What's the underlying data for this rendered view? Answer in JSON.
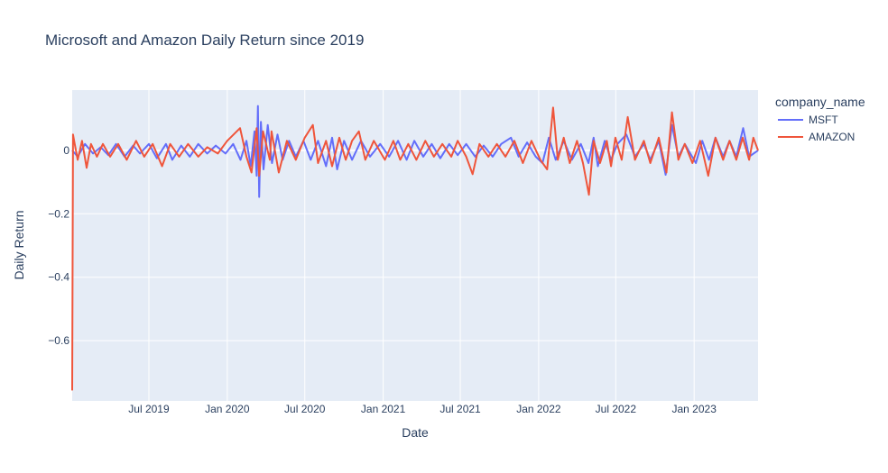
{
  "chart_data": {
    "type": "line",
    "title": "Microsoft and Amazon Daily Return since 2019",
    "xlabel": "Date",
    "ylabel": "Daily Return",
    "x_range": [
      "2019-01-02",
      "2023-05-31"
    ],
    "ylim": [
      -0.79,
      0.19
    ],
    "y_ticks": [
      0,
      -0.2,
      -0.4,
      -0.6
    ],
    "y_tick_labels": [
      "0",
      "−0.2",
      "−0.4",
      "−0.6"
    ],
    "x_ticks": [
      "2019-07-01",
      "2020-01-01",
      "2020-07-01",
      "2021-01-01",
      "2021-07-01",
      "2022-01-01",
      "2022-07-01",
      "2023-01-01"
    ],
    "x_tick_labels": [
      "Jul 2019",
      "Jan 2020",
      "Jul 2020",
      "Jan 2021",
      "Jul 2021",
      "Jan 2022",
      "Jul 2022",
      "Jan 2023"
    ],
    "grid": true,
    "legend": {
      "title": "company_name",
      "placement": "right"
    },
    "series": [
      {
        "name": "MSFT",
        "color": "#636efa",
        "points": [
          [
            "2019-01-02",
            0.0
          ],
          [
            "2019-01-15",
            -0.02
          ],
          [
            "2019-02-01",
            0.02
          ],
          [
            "2019-02-20",
            -0.01
          ],
          [
            "2019-03-10",
            0.01
          ],
          [
            "2019-03-28",
            -0.015
          ],
          [
            "2019-04-15",
            0.02
          ],
          [
            "2019-05-05",
            -0.02
          ],
          [
            "2019-05-25",
            0.015
          ],
          [
            "2019-06-10",
            -0.01
          ],
          [
            "2019-07-01",
            0.02
          ],
          [
            "2019-07-20",
            -0.025
          ],
          [
            "2019-08-10",
            0.02
          ],
          [
            "2019-08-25",
            -0.03
          ],
          [
            "2019-09-15",
            0.015
          ],
          [
            "2019-10-05",
            -0.02
          ],
          [
            "2019-10-25",
            0.02
          ],
          [
            "2019-11-15",
            -0.01
          ],
          [
            "2019-12-05",
            0.015
          ],
          [
            "2019-12-28",
            -0.01
          ],
          [
            "2020-01-15",
            0.02
          ],
          [
            "2020-02-01",
            -0.03
          ],
          [
            "2020-02-15",
            0.03
          ],
          [
            "2020-02-25",
            -0.05
          ],
          [
            "2020-03-05",
            0.06
          ],
          [
            "2020-03-10",
            -0.08
          ],
          [
            "2020-03-13",
            0.14
          ],
          [
            "2020-03-16",
            -0.147
          ],
          [
            "2020-03-20",
            0.09
          ],
          [
            "2020-03-26",
            -0.06
          ],
          [
            "2020-04-05",
            0.08
          ],
          [
            "2020-04-15",
            -0.04
          ],
          [
            "2020-04-28",
            0.05
          ],
          [
            "2020-05-10",
            -0.03
          ],
          [
            "2020-05-25",
            0.03
          ],
          [
            "2020-06-10",
            -0.02
          ],
          [
            "2020-06-28",
            0.03
          ],
          [
            "2020-07-15",
            -0.03
          ],
          [
            "2020-08-01",
            0.03
          ],
          [
            "2020-08-20",
            -0.05
          ],
          [
            "2020-09-03",
            0.04
          ],
          [
            "2020-09-15",
            -0.06
          ],
          [
            "2020-10-01",
            0.03
          ],
          [
            "2020-10-20",
            -0.03
          ],
          [
            "2020-11-10",
            0.03
          ],
          [
            "2020-12-01",
            -0.02
          ],
          [
            "2020-12-25",
            0.02
          ],
          [
            "2021-01-15",
            -0.02
          ],
          [
            "2021-02-05",
            0.03
          ],
          [
            "2021-02-25",
            -0.03
          ],
          [
            "2021-03-15",
            0.03
          ],
          [
            "2021-04-05",
            -0.02
          ],
          [
            "2021-04-25",
            0.02
          ],
          [
            "2021-05-15",
            -0.025
          ],
          [
            "2021-06-05",
            0.02
          ],
          [
            "2021-06-25",
            -0.015
          ],
          [
            "2021-07-15",
            0.02
          ],
          [
            "2021-08-05",
            -0.02
          ],
          [
            "2021-08-25",
            0.015
          ],
          [
            "2021-09-15",
            -0.02
          ],
          [
            "2021-10-05",
            0.02
          ],
          [
            "2021-10-28",
            0.04
          ],
          [
            "2021-11-15",
            -0.02
          ],
          [
            "2021-12-05",
            0.025
          ],
          [
            "2021-12-25",
            -0.02
          ],
          [
            "2022-01-10",
            -0.04
          ],
          [
            "2022-01-25",
            0.04
          ],
          [
            "2022-02-10",
            -0.03
          ],
          [
            "2022-03-01",
            0.03
          ],
          [
            "2022-03-20",
            -0.03
          ],
          [
            "2022-04-10",
            0.02
          ],
          [
            "2022-04-28",
            -0.04
          ],
          [
            "2022-05-10",
            0.04
          ],
          [
            "2022-05-20",
            -0.05
          ],
          [
            "2022-06-05",
            0.03
          ],
          [
            "2022-06-20",
            -0.03
          ],
          [
            "2022-07-05",
            0.02
          ],
          [
            "2022-07-26",
            0.05
          ],
          [
            "2022-08-15",
            -0.02
          ],
          [
            "2022-09-05",
            0.02
          ],
          [
            "2022-09-20",
            -0.03
          ],
          [
            "2022-10-10",
            0.03
          ],
          [
            "2022-10-26",
            -0.077
          ],
          [
            "2022-11-10",
            0.08
          ],
          [
            "2022-11-25",
            -0.02
          ],
          [
            "2022-12-10",
            0.02
          ],
          [
            "2023-01-05",
            -0.04
          ],
          [
            "2023-01-20",
            0.03
          ],
          [
            "2023-02-05",
            -0.03
          ],
          [
            "2023-02-20",
            0.04
          ],
          [
            "2023-03-10",
            -0.02
          ],
          [
            "2023-03-25",
            0.03
          ],
          [
            "2023-04-10",
            -0.02
          ],
          [
            "2023-04-26",
            0.07
          ],
          [
            "2023-05-10",
            -0.02
          ],
          [
            "2023-05-31",
            0.0
          ]
        ]
      },
      {
        "name": "AMAZON",
        "color": "#ef553b",
        "points": [
          [
            "2019-01-02",
            -0.757
          ],
          [
            "2019-01-04",
            0.05
          ],
          [
            "2019-01-08",
            0.02
          ],
          [
            "2019-01-15",
            -0.03
          ],
          [
            "2019-01-25",
            0.03
          ],
          [
            "2019-02-05",
            -0.055
          ],
          [
            "2019-02-15",
            0.02
          ],
          [
            "2019-03-01",
            -0.02
          ],
          [
            "2019-03-15",
            0.02
          ],
          [
            "2019-04-01",
            -0.02
          ],
          [
            "2019-04-20",
            0.02
          ],
          [
            "2019-05-10",
            -0.03
          ],
          [
            "2019-06-01",
            0.03
          ],
          [
            "2019-06-20",
            -0.02
          ],
          [
            "2019-07-10",
            0.02
          ],
          [
            "2019-08-01",
            -0.05
          ],
          [
            "2019-08-20",
            0.02
          ],
          [
            "2019-09-10",
            -0.02
          ],
          [
            "2019-10-01",
            0.02
          ],
          [
            "2019-10-25",
            -0.02
          ],
          [
            "2019-11-15",
            0.01
          ],
          [
            "2019-12-10",
            -0.01
          ],
          [
            "2020-01-01",
            0.03
          ],
          [
            "2020-01-31",
            0.07
          ],
          [
            "2020-02-15",
            -0.02
          ],
          [
            "2020-02-27",
            -0.07
          ],
          [
            "2020-03-10",
            0.07
          ],
          [
            "2020-03-16",
            -0.08
          ],
          [
            "2020-03-25",
            0.06
          ],
          [
            "2020-04-10",
            -0.03
          ],
          [
            "2020-04-14",
            0.06
          ],
          [
            "2020-05-01",
            -0.07
          ],
          [
            "2020-05-20",
            0.03
          ],
          [
            "2020-06-10",
            -0.03
          ],
          [
            "2020-07-01",
            0.04
          ],
          [
            "2020-07-20",
            0.08
          ],
          [
            "2020-08-01",
            -0.04
          ],
          [
            "2020-08-20",
            0.03
          ],
          [
            "2020-09-03",
            -0.05
          ],
          [
            "2020-09-20",
            0.04
          ],
          [
            "2020-10-05",
            -0.03
          ],
          [
            "2020-10-20",
            0.03
          ],
          [
            "2020-11-05",
            0.06
          ],
          [
            "2020-11-20",
            -0.03
          ],
          [
            "2020-12-10",
            0.03
          ],
          [
            "2021-01-05",
            -0.03
          ],
          [
            "2021-01-25",
            0.03
          ],
          [
            "2021-02-10",
            -0.03
          ],
          [
            "2021-03-01",
            0.02
          ],
          [
            "2021-03-20",
            -0.03
          ],
          [
            "2021-04-10",
            0.03
          ],
          [
            "2021-04-30",
            -0.02
          ],
          [
            "2021-05-20",
            0.02
          ],
          [
            "2021-06-10",
            -0.02
          ],
          [
            "2021-06-25",
            0.03
          ],
          [
            "2021-07-15",
            -0.02
          ],
          [
            "2021-07-30",
            -0.075
          ],
          [
            "2021-08-15",
            0.02
          ],
          [
            "2021-09-05",
            -0.02
          ],
          [
            "2021-09-25",
            0.02
          ],
          [
            "2021-10-15",
            -0.02
          ],
          [
            "2021-11-05",
            0.03
          ],
          [
            "2021-11-25",
            -0.04
          ],
          [
            "2021-12-15",
            0.03
          ],
          [
            "2022-01-05",
            -0.03
          ],
          [
            "2022-01-21",
            -0.06
          ],
          [
            "2022-02-04",
            0.135
          ],
          [
            "2022-02-15",
            -0.03
          ],
          [
            "2022-03-01",
            0.04
          ],
          [
            "2022-03-15",
            -0.04
          ],
          [
            "2022-04-01",
            0.03
          ],
          [
            "2022-04-15",
            -0.04
          ],
          [
            "2022-04-29",
            -0.14
          ],
          [
            "2022-05-10",
            0.03
          ],
          [
            "2022-05-25",
            -0.04
          ],
          [
            "2022-06-10",
            0.03
          ],
          [
            "2022-06-20",
            -0.05
          ],
          [
            "2022-06-30",
            0.04
          ],
          [
            "2022-07-15",
            -0.03
          ],
          [
            "2022-07-29",
            0.105
          ],
          [
            "2022-08-15",
            -0.03
          ],
          [
            "2022-09-05",
            0.03
          ],
          [
            "2022-09-20",
            -0.04
          ],
          [
            "2022-10-10",
            0.04
          ],
          [
            "2022-10-28",
            -0.07
          ],
          [
            "2022-11-10",
            0.12
          ],
          [
            "2022-11-25",
            -0.03
          ],
          [
            "2022-12-10",
            0.02
          ],
          [
            "2022-12-28",
            -0.04
          ],
          [
            "2023-01-15",
            0.03
          ],
          [
            "2023-02-03",
            -0.08
          ],
          [
            "2023-02-20",
            0.04
          ],
          [
            "2023-03-10",
            -0.03
          ],
          [
            "2023-03-25",
            0.03
          ],
          [
            "2023-04-10",
            -0.03
          ],
          [
            "2023-04-25",
            0.04
          ],
          [
            "2023-05-10",
            -0.03
          ],
          [
            "2023-05-20",
            0.04
          ],
          [
            "2023-05-31",
            0.0
          ]
        ]
      }
    ]
  }
}
